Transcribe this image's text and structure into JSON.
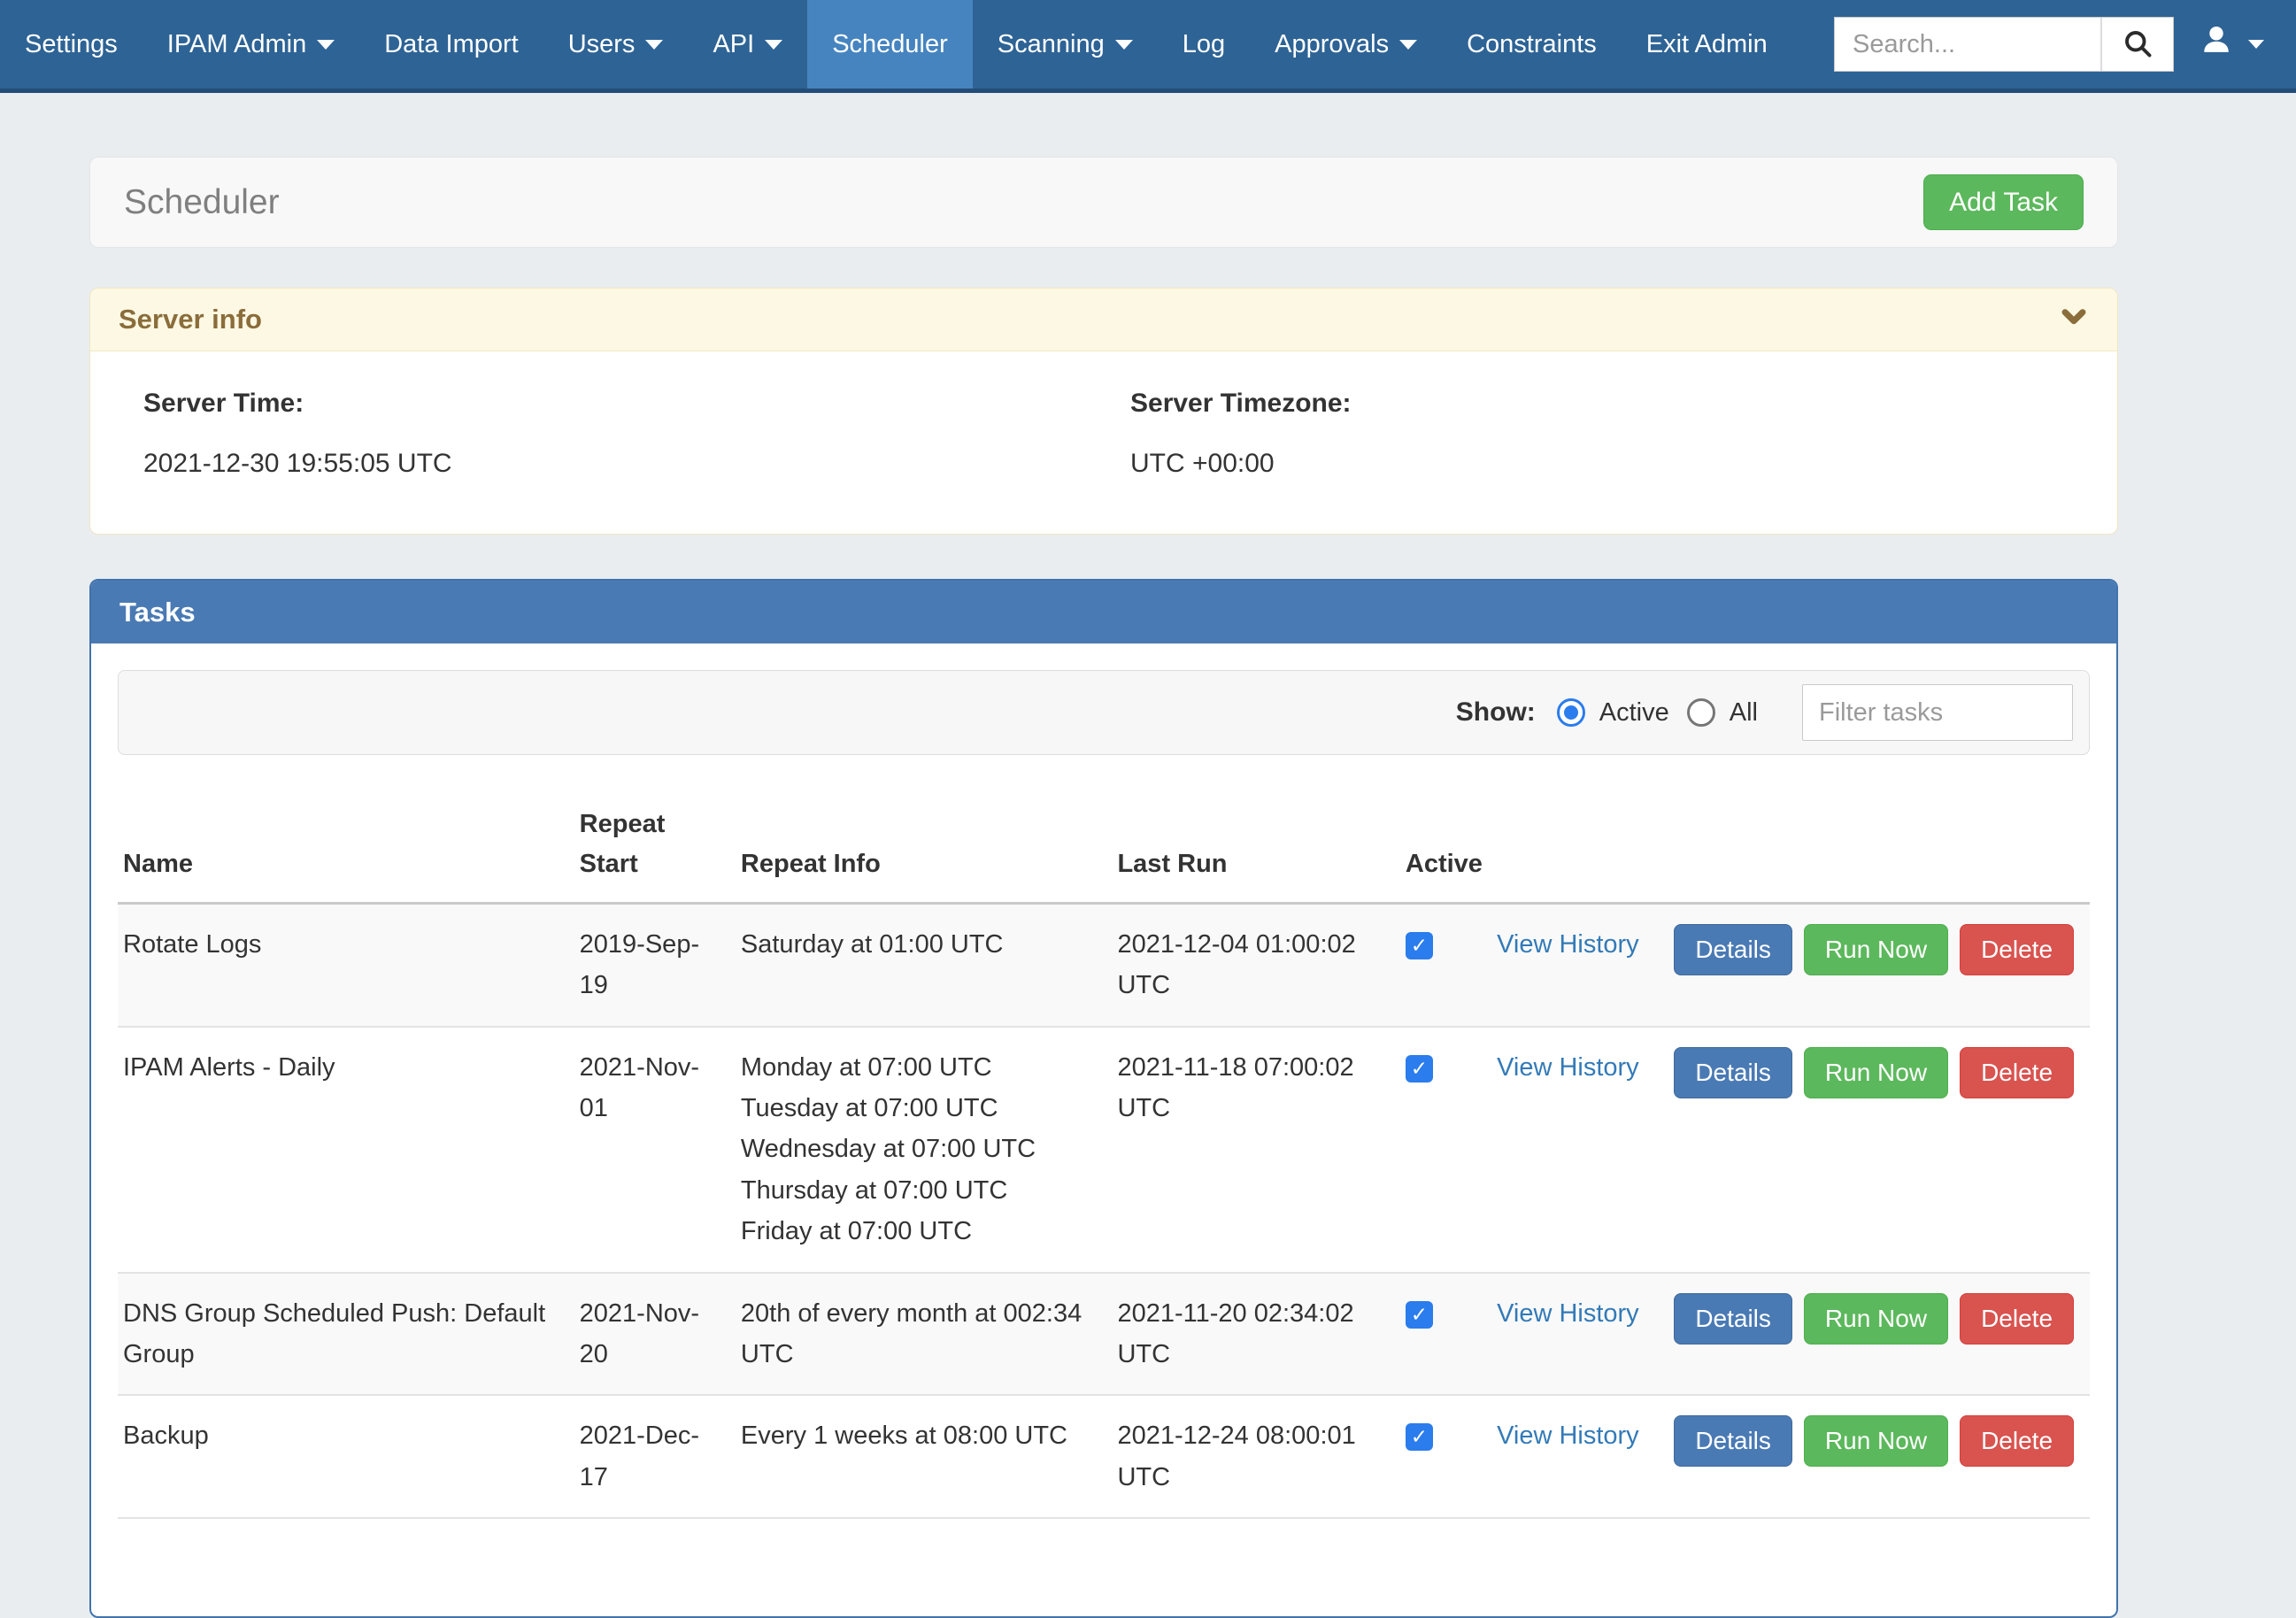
{
  "nav": {
    "items": [
      {
        "label": "Settings",
        "dropdown": false,
        "active": false
      },
      {
        "label": "IPAM Admin",
        "dropdown": true,
        "active": false
      },
      {
        "label": "Data Import",
        "dropdown": false,
        "active": false
      },
      {
        "label": "Users",
        "dropdown": true,
        "active": false
      },
      {
        "label": "API",
        "dropdown": true,
        "active": false
      },
      {
        "label": "Scheduler",
        "dropdown": false,
        "active": true
      },
      {
        "label": "Scanning",
        "dropdown": true,
        "active": false
      },
      {
        "label": "Log",
        "dropdown": false,
        "active": false
      },
      {
        "label": "Approvals",
        "dropdown": true,
        "active": false
      },
      {
        "label": "Constraints",
        "dropdown": false,
        "active": false
      },
      {
        "label": "Exit Admin",
        "dropdown": false,
        "active": false
      }
    ],
    "search_placeholder": "Search...",
    "icons": {
      "search": "magnifier-icon",
      "user": "person-icon"
    }
  },
  "page": {
    "title": "Scheduler",
    "add_task_label": "Add Task"
  },
  "server_info": {
    "title": "Server info",
    "collapse_icon": "chevron-down-icon",
    "server_time_label": "Server Time:",
    "server_time": "2021-12-30 19:55:05 UTC",
    "server_timezone_label": "Server Timezone:",
    "server_timezone": "UTC +00:00"
  },
  "tasks": {
    "title": "Tasks",
    "show_label": "Show:",
    "radio_active_label": "Active",
    "radio_all_label": "All",
    "show_selected": "Active",
    "filter_placeholder": "Filter tasks",
    "columns": [
      "Name",
      "Repeat Start",
      "Repeat Info",
      "Last Run",
      "Active"
    ],
    "actions": {
      "view_history": "View History",
      "details": "Details",
      "run_now": "Run Now",
      "delete": "Delete"
    },
    "rows": [
      {
        "name": "Rotate Logs",
        "repeat_start": "2019-Sep-19",
        "repeat_info": [
          "Saturday at 01:00 UTC"
        ],
        "last_run": "2021-12-04 01:00:02 UTC",
        "active": true
      },
      {
        "name": "IPAM Alerts - Daily",
        "repeat_start": "2021-Nov-01",
        "repeat_info": [
          "Monday at 07:00 UTC",
          "Tuesday at 07:00 UTC",
          "Wednesday at 07:00 UTC",
          "Thursday at 07:00 UTC",
          "Friday at 07:00 UTC"
        ],
        "last_run": "2021-11-18 07:00:02 UTC",
        "active": true
      },
      {
        "name": "DNS Group Scheduled Push: Default Group",
        "repeat_start": "2021-Nov-20",
        "repeat_info": [
          "20th of every month at 002:34 UTC"
        ],
        "last_run": "2021-11-20 02:34:02 UTC",
        "active": true
      },
      {
        "name": "Backup",
        "repeat_start": "2021-Dec-17",
        "repeat_info": [
          "Every 1 weeks at 08:00 UTC"
        ],
        "last_run": "2021-12-24 08:00:01 UTC",
        "active": true
      }
    ]
  },
  "colors": {
    "navbar_bg": "#2e6395",
    "navbar_active_bg": "#4684bf",
    "page_bg": "#e9edf0",
    "warning_header_bg": "#fcf8e3",
    "warning_text": "#8a6d3b",
    "tasks_header_bg": "#4a7ab4",
    "btn_green": "#5cb85c",
    "btn_blue": "#4a7ab4",
    "btn_red": "#d9534f",
    "checkbox_blue": "#2b7cec",
    "link_blue": "#337ab7"
  }
}
